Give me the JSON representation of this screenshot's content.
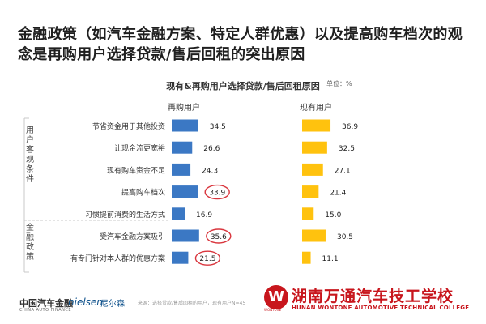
{
  "headline": "金融政策（如汽车金融方案、特定人群优惠）以及提高购车档次的观念是再购用户选择贷款/售后回租的突出原因",
  "chart_title": "现有&再购用户选择贷款/售后回租原因",
  "unit_label": "单位：%",
  "groups": [
    {
      "label": "用户客观条件",
      "display": "用户客观条件"
    },
    {
      "label": "金融政策",
      "display": "金融政策"
    }
  ],
  "footer": {
    "logo_china": "中国汽车金融",
    "logo_sub": "CHINA AUTO FINANCE",
    "logo_nielsen": "nielsen",
    "logo_nielsen_cn": "尼尔森",
    "source": "来源：选择贷款/售后回租的用户，现有用户N=45"
  },
  "watermark": {
    "badge_letter": "W",
    "badge_text": "WONTONE",
    "school_name": "湖南万通汽车技工学校",
    "school_en": "HUNAN WONTONE AUTOMOTIVE TECHNICAL COLLEGE"
  },
  "colors": {
    "repurchase": "#3b78c4",
    "existing": "#ffc20e",
    "highlight_circle": "#d9363e",
    "divider": "#c8c8c8"
  },
  "chart_data": {
    "type": "bar",
    "orientation": "horizontal",
    "title": "现有&再购用户选择贷款/售后回租原因",
    "unit": "%",
    "categories": [
      "节省资金用于其他投资",
      "让现金流更宽裕",
      "现有购车资金不足",
      "提高购车档次",
      "习惯提前消费的生活方式",
      "受汽车金融方案吸引",
      "有专门针对本人群的优惠方案"
    ],
    "series": [
      {
        "name": "再购用户",
        "values": [
          34.5,
          26.6,
          24.3,
          33.9,
          16.9,
          35.6,
          21.5
        ],
        "highlighted": [
          false,
          false,
          false,
          true,
          false,
          true,
          true
        ]
      },
      {
        "name": "现有用户",
        "values": [
          36.9,
          32.5,
          27.1,
          21.4,
          15.0,
          30.5,
          11.1
        ]
      }
    ],
    "xlim": [
      0,
      40
    ],
    "value_labels": {
      "再购用户": [
        "34.5",
        "26.6",
        "24.3",
        "33.9",
        "16.9",
        "35.6",
        "21.5"
      ],
      "现有用户": [
        "36.9",
        "32.5",
        "27.1",
        "21.4",
        "15.0",
        "30.5",
        "11.1"
      ]
    },
    "grid": false,
    "legend": "column-headers"
  }
}
